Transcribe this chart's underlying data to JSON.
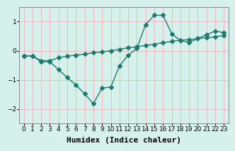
{
  "xlabel": "Humidex (Indice chaleur)",
  "bg_color": "#d6f0ec",
  "grid_color": "#f0b0b0",
  "line_color": "#1e7a6e",
  "x_data": [
    0,
    1,
    2,
    3,
    4,
    5,
    6,
    7,
    8,
    9,
    10,
    11,
    12,
    13,
    14,
    15,
    16,
    17,
    18,
    19,
    20,
    21,
    22,
    23
  ],
  "curve1": [
    -0.18,
    -0.18,
    -0.38,
    -0.38,
    -0.65,
    -0.92,
    -1.18,
    -1.48,
    -1.82,
    -1.28,
    -1.25,
    -0.52,
    -0.15,
    0.08,
    0.9,
    1.22,
    1.22,
    0.58,
    0.35,
    0.28,
    0.42,
    0.55,
    0.68,
    0.62
  ],
  "curve2": [
    -0.18,
    -0.18,
    -0.34,
    -0.34,
    -0.24,
    -0.19,
    -0.15,
    -0.12,
    -0.07,
    -0.04,
    0.0,
    0.05,
    0.1,
    0.14,
    0.18,
    0.22,
    0.28,
    0.32,
    0.36,
    0.38,
    0.42,
    0.45,
    0.48,
    0.52
  ],
  "ylim": [
    -2.5,
    1.5
  ],
  "xlim": [
    -0.5,
    23.5
  ],
  "yticks": [
    -2,
    -1,
    0,
    1
  ],
  "xticks": [
    0,
    1,
    2,
    3,
    4,
    5,
    6,
    7,
    8,
    9,
    10,
    11,
    12,
    13,
    14,
    15,
    16,
    17,
    18,
    19,
    20,
    21,
    22,
    23
  ],
  "markersize": 3,
  "linewidth": 1.0,
  "xlabel_fontsize": 8,
  "tick_fontsize": 6.5
}
